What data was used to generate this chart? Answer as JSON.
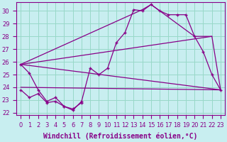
{
  "xlabel": "Windchill (Refroidissement éolien,°C)",
  "background_color": "#c8eef0",
  "grid_color": "#98d8c8",
  "line_color": "#880088",
  "ylim": [
    21.8,
    30.7
  ],
  "xlim": [
    -0.5,
    23.5
  ],
  "yticks": [
    22,
    23,
    24,
    25,
    26,
    27,
    28,
    29,
    30
  ],
  "xticks": [
    0,
    1,
    2,
    3,
    4,
    5,
    6,
    7,
    8,
    9,
    10,
    11,
    12,
    13,
    14,
    15,
    16,
    17,
    18,
    19,
    20,
    21,
    22,
    23
  ],
  "line1_x": [
    0,
    1,
    2,
    3,
    4,
    5,
    6,
    7,
    8,
    9,
    10,
    11,
    12,
    13,
    14,
    15,
    16,
    17,
    18,
    19,
    20,
    21,
    22,
    23
  ],
  "line1_y": [
    25.8,
    25.1,
    23.8,
    22.9,
    23.2,
    22.5,
    22.2,
    22.9,
    25.5,
    25.0,
    25.5,
    27.5,
    28.3,
    30.1,
    30.0,
    30.5,
    30.0,
    29.7,
    29.7,
    29.7,
    28.0,
    26.8,
    25.0,
    23.8
  ],
  "line2_x": [
    0,
    22
  ],
  "line2_y": [
    25.8,
    28.0
  ],
  "line3_x": [
    0,
    23
  ],
  "line3_y": [
    24.0,
    23.8
  ],
  "line4_x": [
    0,
    1,
    2,
    3,
    4,
    5,
    6,
    7
  ],
  "line4_y": [
    23.8,
    23.2,
    23.5,
    22.8,
    22.9,
    22.5,
    22.3,
    22.8
  ],
  "poly_x": [
    0,
    14,
    15,
    20,
    22,
    23,
    0
  ],
  "poly_y": [
    25.8,
    30.1,
    30.5,
    28.0,
    28.0,
    23.8,
    25.8
  ],
  "tick_fontsize": 6,
  "xlabel_fontsize": 7
}
